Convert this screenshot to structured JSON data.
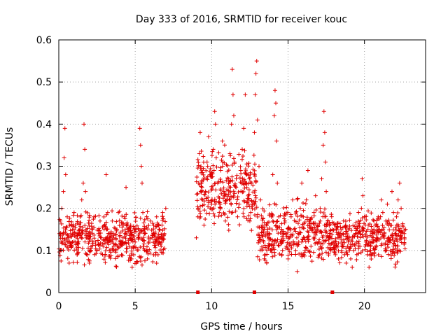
{
  "chart_data": {
    "type": "scatter",
    "title": "Day 333 of 2016, SRMTID for receiver kouc",
    "xlabel": "GPS time / hours",
    "ylabel": "SRMTID / TECUs",
    "xlim": [
      0,
      24
    ],
    "ylim": [
      0,
      0.6
    ],
    "xticks": [
      0,
      5,
      10,
      15,
      20
    ],
    "yticks": [
      0,
      0.1,
      0.2,
      0.3,
      0.4,
      0.5,
      0.6
    ],
    "xtick_labels": [
      "0",
      "5",
      "10",
      "15",
      "20"
    ],
    "ytick_labels": [
      "0",
      "0.1",
      "0.2",
      "0.3",
      "0.4",
      "0.5",
      "0.6"
    ],
    "grid": true,
    "marker": "+",
    "marker_color": "#e00000",
    "segments": [
      {
        "x_start": 0.0,
        "x_end": 7.0,
        "y_base": 0.13,
        "spread": 0.05
      },
      {
        "x_start": 9.0,
        "x_end": 13.0,
        "y_base": 0.24,
        "spread": 0.08
      },
      {
        "x_start": 13.0,
        "x_end": 18.0,
        "y_base": 0.14,
        "spread": 0.06
      },
      {
        "x_start": 18.0,
        "x_end": 22.7,
        "y_base": 0.13,
        "spread": 0.05
      }
    ],
    "points": [
      [
        0.05,
        0.14
      ],
      [
        0.1,
        0.17
      ],
      [
        0.15,
        0.12
      ],
      [
        0.2,
        0.2
      ],
      [
        0.3,
        0.24
      ],
      [
        0.35,
        0.32
      ],
      [
        0.4,
        0.39
      ],
      [
        0.45,
        0.28
      ],
      [
        0.55,
        0.18
      ],
      [
        0.6,
        0.13
      ],
      [
        0.7,
        0.16
      ],
      [
        0.8,
        0.11
      ],
      [
        0.9,
        0.15
      ],
      [
        1.0,
        0.19
      ],
      [
        1.1,
        0.12
      ],
      [
        1.2,
        0.09
      ],
      [
        1.3,
        0.14
      ],
      [
        1.4,
        0.18
      ],
      [
        1.5,
        0.22
      ],
      [
        1.6,
        0.26
      ],
      [
        1.65,
        0.4
      ],
      [
        1.7,
        0.34
      ],
      [
        1.75,
        0.24
      ],
      [
        1.8,
        0.13
      ],
      [
        1.9,
        0.09
      ],
      [
        2.0,
        0.07
      ],
      [
        2.1,
        0.1
      ],
      [
        2.2,
        0.15
      ],
      [
        2.3,
        0.18
      ],
      [
        2.4,
        0.12
      ],
      [
        2.5,
        0.1
      ],
      [
        2.6,
        0.14
      ],
      [
        2.7,
        0.17
      ],
      [
        2.8,
        0.13
      ],
      [
        2.9,
        0.11
      ],
      [
        3.0,
        0.16
      ],
      [
        3.1,
        0.28
      ],
      [
        3.2,
        0.19
      ],
      [
        3.3,
        0.14
      ],
      [
        3.4,
        0.12
      ],
      [
        3.5,
        0.17
      ],
      [
        3.6,
        0.13
      ],
      [
        3.7,
        0.1
      ],
      [
        3.8,
        0.15
      ],
      [
        3.9,
        0.19
      ],
      [
        4.0,
        0.12
      ],
      [
        4.1,
        0.09
      ],
      [
        4.2,
        0.13
      ],
      [
        4.3,
        0.18
      ],
      [
        4.4,
        0.25
      ],
      [
        4.5,
        0.16
      ],
      [
        4.6,
        0.11
      ],
      [
        4.7,
        0.08
      ],
      [
        4.8,
        0.06
      ],
      [
        4.9,
        0.09
      ],
      [
        5.0,
        0.12
      ],
      [
        5.1,
        0.07
      ],
      [
        5.2,
        0.15
      ],
      [
        5.3,
        0.39
      ],
      [
        5.35,
        0.35
      ],
      [
        5.4,
        0.3
      ],
      [
        5.45,
        0.26
      ],
      [
        5.5,
        0.19
      ],
      [
        5.6,
        0.14
      ],
      [
        5.7,
        0.1
      ],
      [
        5.8,
        0.08
      ],
      [
        5.9,
        0.12
      ],
      [
        6.0,
        0.17
      ],
      [
        6.1,
        0.13
      ],
      [
        6.2,
        0.09
      ],
      [
        6.3,
        0.14
      ],
      [
        6.4,
        0.18
      ],
      [
        6.5,
        0.12
      ],
      [
        6.6,
        0.15
      ],
      [
        6.7,
        0.11
      ],
      [
        6.8,
        0.19
      ],
      [
        6.9,
        0.14
      ],
      [
        7.0,
        0.2
      ],
      [
        9.0,
        0.13
      ],
      [
        9.1,
        0.18
      ],
      [
        9.15,
        0.26
      ],
      [
        9.2,
        0.33
      ],
      [
        9.25,
        0.38
      ],
      [
        9.3,
        0.3
      ],
      [
        9.4,
        0.22
      ],
      [
        9.5,
        0.16
      ],
      [
        9.6,
        0.24
      ],
      [
        9.7,
        0.31
      ],
      [
        9.8,
        0.37
      ],
      [
        9.9,
        0.28
      ],
      [
        10.0,
        0.21
      ],
      [
        10.1,
        0.34
      ],
      [
        10.2,
        0.43
      ],
      [
        10.25,
        0.4
      ],
      [
        10.3,
        0.32
      ],
      [
        10.4,
        0.26
      ],
      [
        10.5,
        0.19
      ],
      [
        10.6,
        0.29
      ],
      [
        10.7,
        0.36
      ],
      [
        10.8,
        0.24
      ],
      [
        10.9,
        0.17
      ],
      [
        11.0,
        0.22
      ],
      [
        11.1,
        0.27
      ],
      [
        11.2,
        0.33
      ],
      [
        11.3,
        0.4
      ],
      [
        11.35,
        0.53
      ],
      [
        11.4,
        0.47
      ],
      [
        11.45,
        0.42
      ],
      [
        11.5,
        0.31
      ],
      [
        11.6,
        0.25
      ],
      [
        11.7,
        0.18
      ],
      [
        11.8,
        0.21
      ],
      [
        11.9,
        0.29
      ],
      [
        12.0,
        0.34
      ],
      [
        12.1,
        0.39
      ],
      [
        12.2,
        0.47
      ],
      [
        12.3,
        0.28
      ],
      [
        12.4,
        0.22
      ],
      [
        12.5,
        0.17
      ],
      [
        12.6,
        0.26
      ],
      [
        12.7,
        0.21
      ],
      [
        12.8,
        0.38
      ],
      [
        12.85,
        0.47
      ],
      [
        12.9,
        0.52
      ],
      [
        12.95,
        0.55
      ],
      [
        13.0,
        0.41
      ],
      [
        13.1,
        0.3
      ],
      [
        13.2,
        0.22
      ],
      [
        13.3,
        0.16
      ],
      [
        13.4,
        0.12
      ],
      [
        13.5,
        0.09
      ],
      [
        13.6,
        0.07
      ],
      [
        13.7,
        0.11
      ],
      [
        13.8,
        0.14
      ],
      [
        13.9,
        0.18
      ],
      [
        14.0,
        0.28
      ],
      [
        14.1,
        0.42
      ],
      [
        14.15,
        0.48
      ],
      [
        14.2,
        0.45
      ],
      [
        14.25,
        0.36
      ],
      [
        14.3,
        0.26
      ],
      [
        14.4,
        0.18
      ],
      [
        14.5,
        0.12
      ],
      [
        14.6,
        0.09
      ],
      [
        14.7,
        0.14
      ],
      [
        14.8,
        0.17
      ],
      [
        14.9,
        0.11
      ],
      [
        15.0,
        0.08
      ],
      [
        15.1,
        0.13
      ],
      [
        15.2,
        0.18
      ],
      [
        15.3,
        0.22
      ],
      [
        15.4,
        0.15
      ],
      [
        15.5,
        0.1
      ],
      [
        15.6,
        0.05
      ],
      [
        15.7,
        0.12
      ],
      [
        15.8,
        0.2
      ],
      [
        15.9,
        0.26
      ],
      [
        16.0,
        0.18
      ],
      [
        16.1,
        0.13
      ],
      [
        16.2,
        0.22
      ],
      [
        16.3,
        0.29
      ],
      [
        16.4,
        0.17
      ],
      [
        16.5,
        0.11
      ],
      [
        16.6,
        0.15
      ],
      [
        16.7,
        0.19
      ],
      [
        16.8,
        0.23
      ],
      [
        16.9,
        0.16
      ],
      [
        17.0,
        0.12
      ],
      [
        17.1,
        0.2
      ],
      [
        17.2,
        0.27
      ],
      [
        17.3,
        0.35
      ],
      [
        17.35,
        0.43
      ],
      [
        17.4,
        0.38
      ],
      [
        17.45,
        0.31
      ],
      [
        17.5,
        0.24
      ],
      [
        17.6,
        0.17
      ],
      [
        17.7,
        0.13
      ],
      [
        17.8,
        0.1
      ],
      [
        17.9,
        0.15
      ],
      [
        18.0,
        0.12
      ],
      [
        18.1,
        0.09
      ],
      [
        18.2,
        0.11
      ],
      [
        18.3,
        0.08
      ],
      [
        18.4,
        0.13
      ],
      [
        18.5,
        0.1
      ],
      [
        18.6,
        0.14
      ],
      [
        18.7,
        0.09
      ],
      [
        18.8,
        0.07
      ],
      [
        18.9,
        0.11
      ],
      [
        19.0,
        0.13
      ],
      [
        19.1,
        0.08
      ],
      [
        19.2,
        0.06
      ],
      [
        19.3,
        0.1
      ],
      [
        19.4,
        0.14
      ],
      [
        19.5,
        0.12
      ],
      [
        19.6,
        0.16
      ],
      [
        19.7,
        0.11
      ],
      [
        19.8,
        0.2
      ],
      [
        19.85,
        0.27
      ],
      [
        19.9,
        0.23
      ],
      [
        20.0,
        0.18
      ],
      [
        20.1,
        0.12
      ],
      [
        20.2,
        0.09
      ],
      [
        20.3,
        0.06
      ],
      [
        20.4,
        0.1
      ],
      [
        20.5,
        0.14
      ],
      [
        20.6,
        0.12
      ],
      [
        20.7,
        0.16
      ],
      [
        20.8,
        0.13
      ],
      [
        20.9,
        0.18
      ],
      [
        21.0,
        0.15
      ],
      [
        21.1,
        0.22
      ],
      [
        21.2,
        0.19
      ],
      [
        21.3,
        0.14
      ],
      [
        21.4,
        0.17
      ],
      [
        21.5,
        0.21
      ],
      [
        21.6,
        0.13
      ],
      [
        21.7,
        0.16
      ],
      [
        21.8,
        0.24
      ],
      [
        21.9,
        0.19
      ],
      [
        22.0,
        0.14
      ],
      [
        22.1,
        0.18
      ],
      [
        22.2,
        0.22
      ],
      [
        22.3,
        0.26
      ],
      [
        22.4,
        0.2
      ],
      [
        22.5,
        0.16
      ],
      [
        22.6,
        0.14
      ],
      [
        22.7,
        0.15
      ]
    ],
    "x_markers": [
      9.1,
      12.8,
      17.9
    ]
  }
}
